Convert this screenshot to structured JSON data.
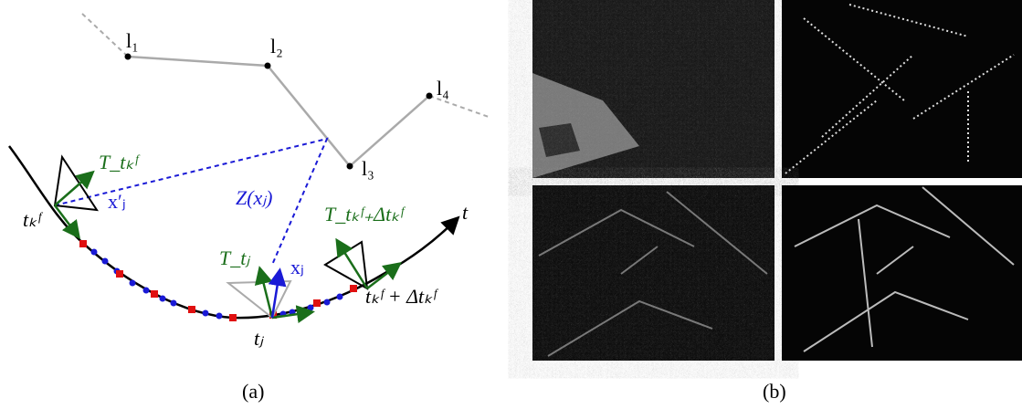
{
  "panel_a": {
    "landmarks": [
      "l₁",
      "l₂",
      "l₃",
      "l₄"
    ],
    "time_axis": "t",
    "pose_start": "tₖᶠ",
    "transform_start": "T_tₖᶠ",
    "bearing": "x′ⱼ",
    "depth": "Z(xⱼ)",
    "transform_end": "T_tₖᶠ₊Δtₖᶠ",
    "transform_j": "T_tⱼ",
    "point": "xⱼ",
    "pose_end": "tₖᶠ + Δtₖᶠ",
    "time_j": "tⱼ"
  },
  "captions": {
    "a": "(a)",
    "b": "(b)"
  }
}
